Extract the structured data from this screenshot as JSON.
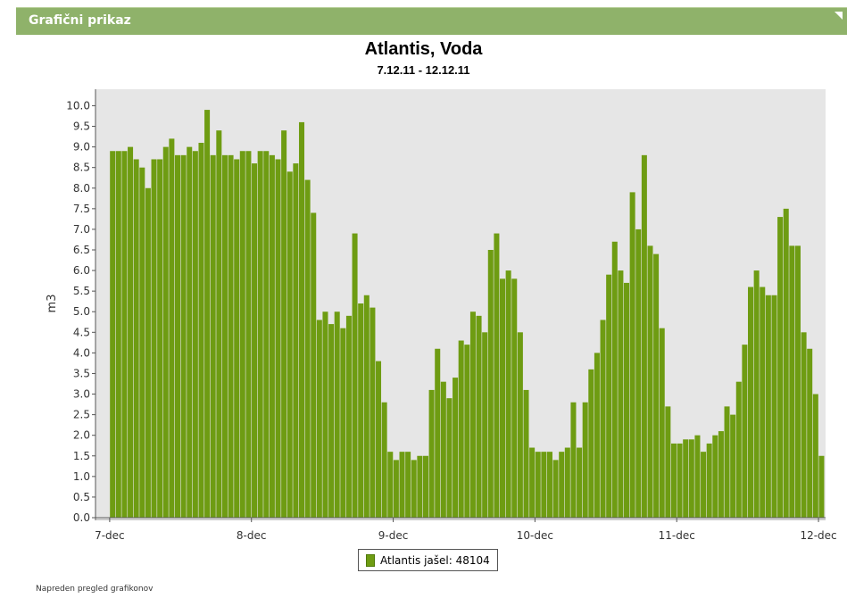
{
  "panel": {
    "title": "Grafični prikaz"
  },
  "footer": {
    "link_label": "Napreden pregled grafikonov"
  },
  "colors": {
    "bar": "#6e9c12",
    "plot_bg": "#e6e6e6",
    "header": "#8fb26a"
  },
  "chart_data": {
    "type": "bar",
    "title": "Atlantis, Voda",
    "subtitle": "7.12.11 - 12.12.11",
    "xlabel": "",
    "ylabel": "m3",
    "ylim": [
      0,
      10.4
    ],
    "yticks": [
      "0.0",
      "0.5",
      "1.0",
      "1.5",
      "2.0",
      "2.5",
      "3.0",
      "3.5",
      "4.0",
      "4.5",
      "5.0",
      "5.5",
      "6.0",
      "6.5",
      "7.0",
      "7.5",
      "8.0",
      "8.5",
      "9.0",
      "9.5",
      "10.0"
    ],
    "xlim": [
      6.9,
      12.05
    ],
    "xticks": [
      {
        "value": 7,
        "label": "7-dec"
      },
      {
        "value": 8,
        "label": "8-dec"
      },
      {
        "value": 9,
        "label": "9-dec"
      },
      {
        "value": 10,
        "label": "10-dec"
      },
      {
        "value": 11,
        "label": "11-dec"
      },
      {
        "value": 12,
        "label": "12-dec"
      }
    ],
    "x_start": 7.0,
    "x_step_days": 0.04167,
    "grid": false,
    "legend_position": "bottom",
    "series": [
      {
        "name": "Atlantis jašel: 48104",
        "values": [
          8.9,
          8.9,
          8.9,
          9.0,
          8.7,
          8.5,
          8.0,
          8.7,
          8.7,
          9.0,
          9.2,
          8.8,
          8.8,
          9.0,
          8.9,
          9.1,
          9.9,
          8.8,
          9.4,
          8.8,
          8.8,
          8.7,
          8.9,
          8.9,
          8.6,
          8.9,
          8.9,
          8.8,
          8.7,
          9.4,
          8.4,
          8.6,
          9.6,
          8.2,
          7.4,
          4.8,
          5.0,
          4.7,
          5.0,
          4.6,
          4.9,
          6.9,
          5.2,
          5.4,
          5.1,
          3.8,
          2.8,
          1.6,
          1.4,
          1.6,
          1.6,
          1.4,
          1.5,
          1.5,
          3.1,
          4.1,
          3.3,
          2.9,
          3.4,
          4.3,
          4.2,
          5.0,
          4.9,
          4.5,
          6.5,
          6.9,
          5.8,
          6.0,
          5.8,
          4.5,
          3.1,
          1.7,
          1.6,
          1.6,
          1.6,
          1.4,
          1.6,
          1.7,
          2.8,
          1.7,
          2.8,
          3.6,
          4.0,
          4.8,
          5.9,
          6.7,
          6.0,
          5.7,
          7.9,
          7.0,
          8.8,
          6.6,
          6.4,
          4.6,
          2.7,
          1.8,
          1.8,
          1.9,
          1.9,
          2.0,
          1.6,
          1.8,
          2.0,
          2.1,
          2.7,
          2.5,
          3.3,
          4.2,
          5.6,
          6.0,
          5.6,
          5.4,
          5.4,
          7.3,
          7.5,
          6.6,
          6.6,
          4.5,
          4.1,
          3.0,
          1.5
        ]
      }
    ]
  }
}
